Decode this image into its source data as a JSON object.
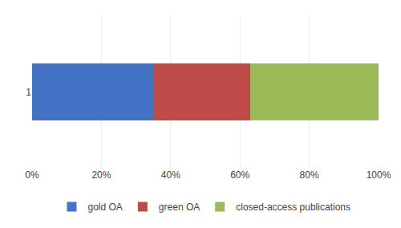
{
  "chart_data": {
    "type": "bar",
    "orientation": "horizontal",
    "stacked": true,
    "categories": [
      "1"
    ],
    "series": [
      {
        "name": "gold OA",
        "color": "#4472C4",
        "values": [
          35
        ]
      },
      {
        "name": "green OA",
        "color": "#BE4B48",
        "values": [
          28
        ]
      },
      {
        "name": "closed-access publications",
        "color": "#9BBB59",
        "values": [
          37
        ]
      }
    ],
    "xlim": [
      0,
      100
    ],
    "xticks": [
      {
        "value": 0,
        "label": "0%"
      },
      {
        "value": 20,
        "label": "20%"
      },
      {
        "value": 40,
        "label": "40%"
      },
      {
        "value": 60,
        "label": "60%"
      },
      {
        "value": 80,
        "label": "80%"
      },
      {
        "value": 100,
        "label": "100%"
      }
    ],
    "grid": true,
    "legend": "bottom"
  }
}
